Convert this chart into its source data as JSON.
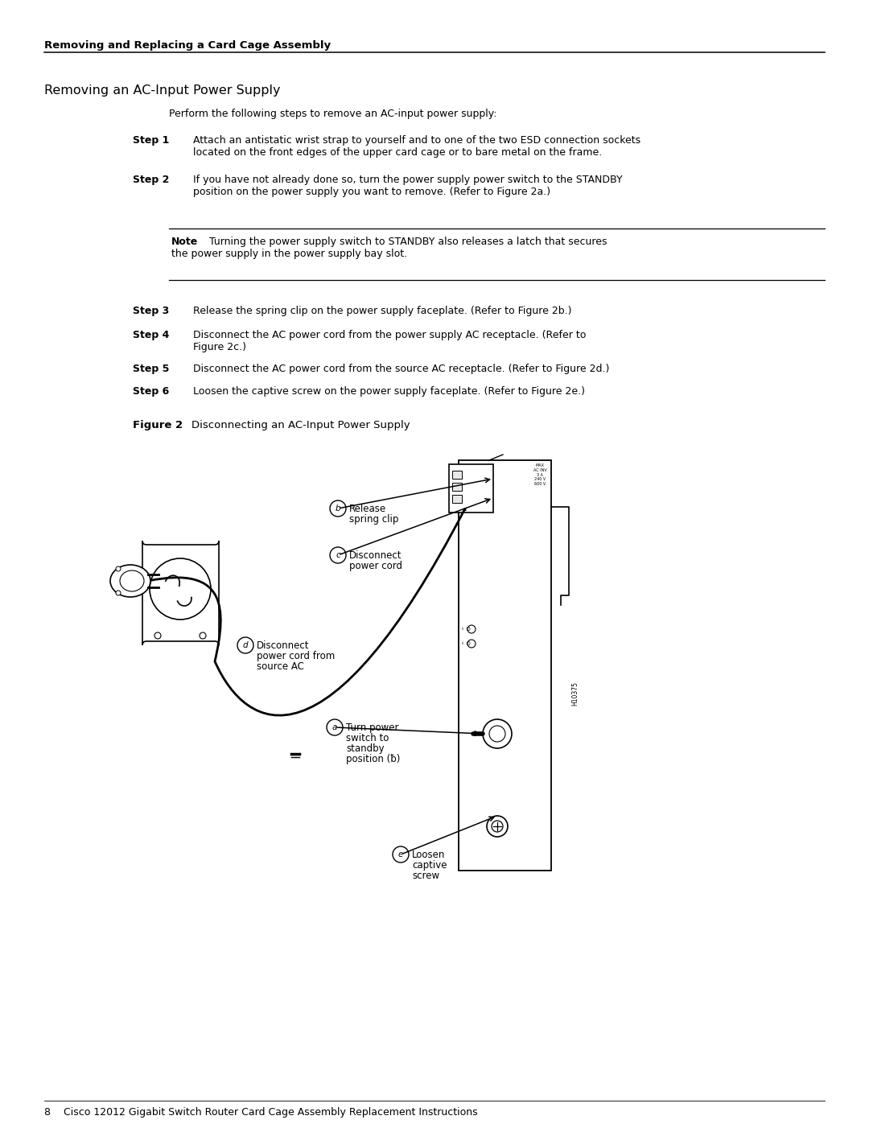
{
  "bg_color": "#ffffff",
  "header_text": "Removing and Replacing a Card Cage Assembly",
  "section_title": "Removing an AC-Input Power Supply",
  "intro_text": "Perform the following steps to remove an AC-input power supply:",
  "note_label": "Note",
  "note_text1": "Turning the power supply switch to STANDBY also releases a latch that secures",
  "note_text2": "the power supply in the power supply bay slot.",
  "figure_label": "Figure 2",
  "figure_title": "Disconnecting an AC-Input Power Supply",
  "footer_text": "8    Cisco 12012 Gigabit Switch Router Card Cage Assembly Replacement Instructions",
  "steps": [
    {
      "num": "1",
      "text1": "Attach an antistatic wrist strap to yourself and to one of the two ESD connection sockets",
      "text2": "located on the front edges of the upper card cage or to bare metal on the frame."
    },
    {
      "num": "2",
      "text1": "If you have not already done so, turn the power supply power switch to the STANDBY",
      "text2": "position on the power supply you want to remove. (Refer to Figure 2a.)"
    },
    {
      "num": "3",
      "text1": "Release the spring clip on the power supply faceplate. (Refer to Figure 2b.)",
      "text2": ""
    },
    {
      "num": "4",
      "text1": "Disconnect the AC power cord from the power supply AC receptacle. (Refer to",
      "text2": "Figure 2c.)"
    },
    {
      "num": "5",
      "text1": "Disconnect the AC power cord from the source AC receptacle. (Refer to Figure 2d.)",
      "text2": ""
    },
    {
      "num": "6",
      "text1": "Loosen the captive screw on the power supply faceplate. (Refer to Figure 2e.)",
      "text2": ""
    }
  ]
}
